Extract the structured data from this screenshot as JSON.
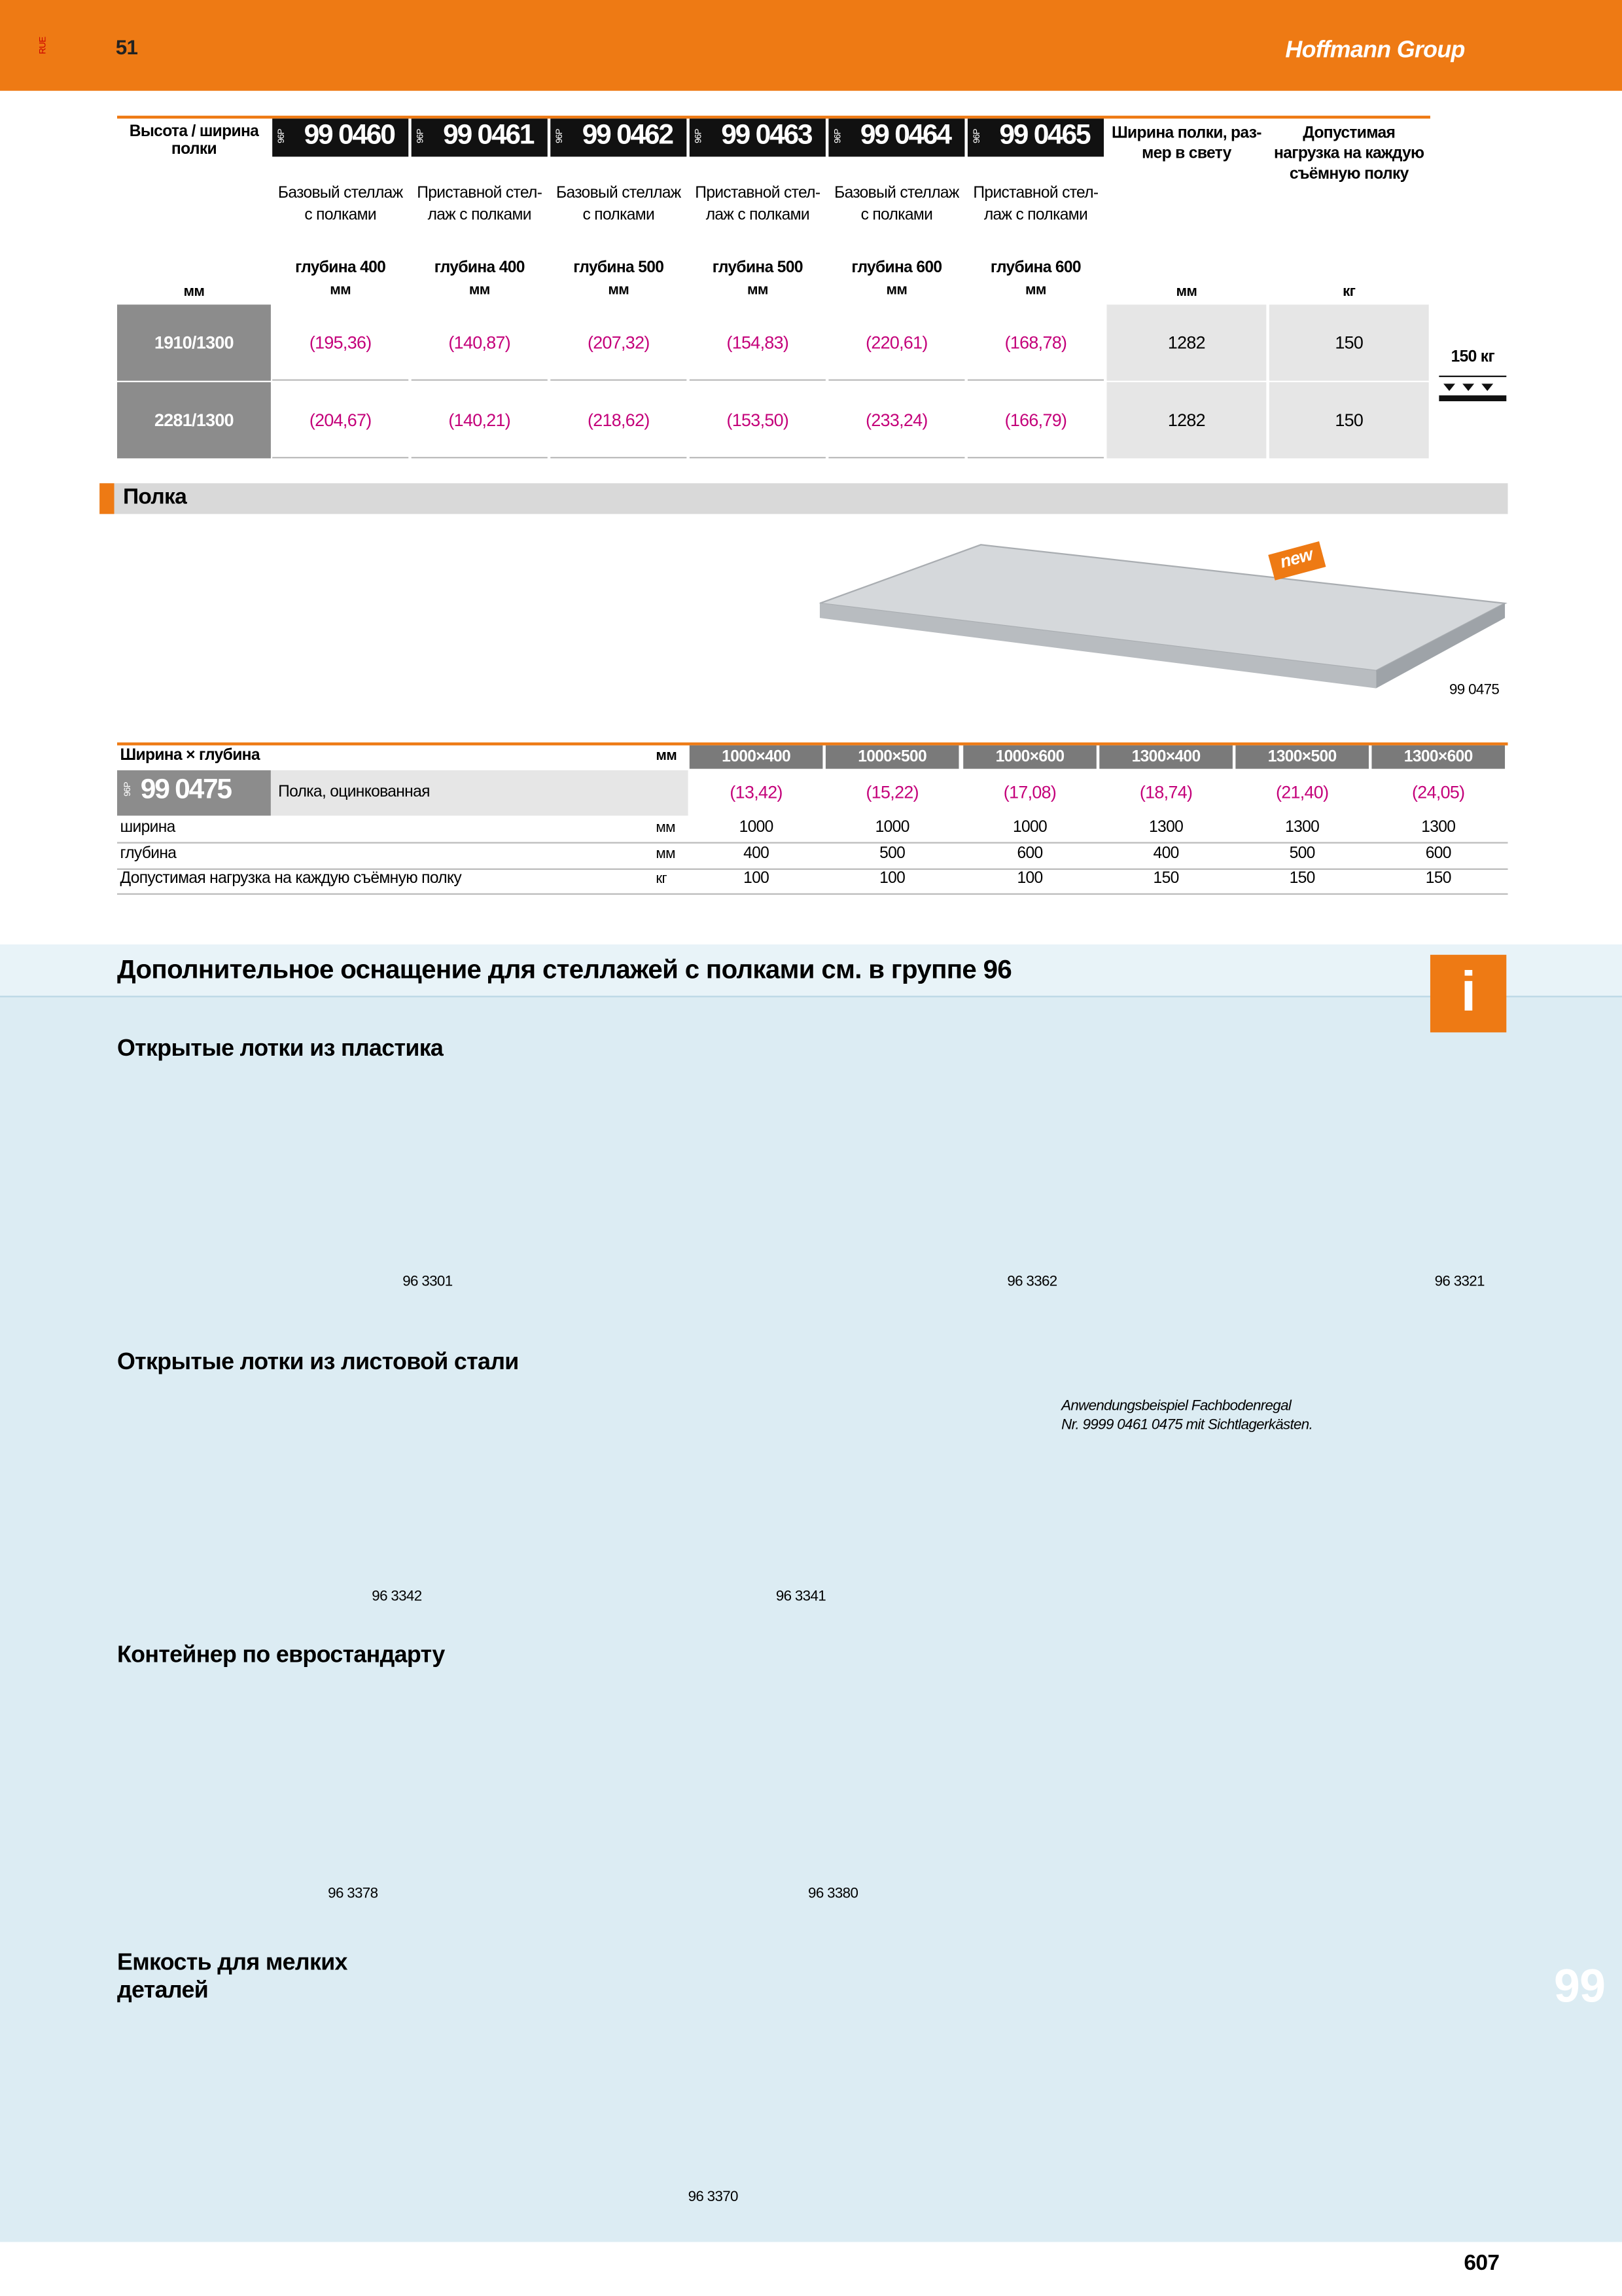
{
  "header": {
    "lang": "RUE",
    "section_page": "51",
    "brand": "Hoffmann Group"
  },
  "table1": {
    "label_header": "Высота / ширина полки",
    "label_unit": "мм",
    "products": [
      {
        "prefix": "96P",
        "code": "99 0460",
        "description": "Базовый стеллаж с полками",
        "depth": "глубина 400",
        "unit": "мм"
      },
      {
        "prefix": "96P",
        "code": "99 0461",
        "description": "Приставной стел- лаж с полками",
        "depth": "глубина 400",
        "unit": "мм"
      },
      {
        "prefix": "96P",
        "code": "99 0462",
        "description": "Базовый стеллаж с полками",
        "depth": "глубина 500",
        "unit": "мм"
      },
      {
        "prefix": "96P",
        "code": "99 0463",
        "description": "Приставной стел- лаж с полками",
        "depth": "глубина 500",
        "unit": "мм"
      },
      {
        "prefix": "96P",
        "code": "99 0464",
        "description": "Базовый стеллаж с полками",
        "depth": "глубина 600",
        "unit": "мм"
      },
      {
        "prefix": "96P",
        "code": "99 0465",
        "description": "Приставной стел- лаж с полками",
        "depth": "глубина 600",
        "unit": "мм"
      }
    ],
    "extra_columns": [
      {
        "header": "Ширина полки, раз- мер в свету",
        "unit": "мм"
      },
      {
        "header": "Допустимая нагрузка на каждую съёмную полку",
        "unit": "кг"
      }
    ],
    "rows": [
      {
        "label": "1910/1300",
        "prices": [
          "(195,36)",
          "(140,87)",
          "(207,32)",
          "(154,83)",
          "(220,61)",
          "(168,78)"
        ],
        "extra": [
          "1282",
          "150"
        ]
      },
      {
        "label": "2281/1300",
        "prices": [
          "(204,67)",
          "(140,21)",
          "(218,62)",
          "(153,50)",
          "(233,24)",
          "(166,79)"
        ],
        "extra": [
          "1282",
          "150"
        ]
      }
    ]
  },
  "load_badge": "150 кг",
  "shelf_section": {
    "title": "Полка",
    "badge": "new",
    "image_code": "99 0475"
  },
  "table2": {
    "size_header": "Ширина × глубина",
    "size_unit": "мм",
    "sizes": [
      "1000×400",
      "1000×500",
      "1000×600",
      "1300×400",
      "1300×500",
      "1300×600"
    ],
    "product": {
      "prefix": "96P",
      "code": "99 0475",
      "description": "Полка, оцинкованная",
      "prices": [
        "(13,42)",
        "(15,22)",
        "(17,08)",
        "(18,74)",
        "(21,40)",
        "(24,05)"
      ]
    },
    "rows": [
      {
        "label": "ширина",
        "unit": "мм",
        "values": [
          "1000",
          "1000",
          "1000",
          "1300",
          "1300",
          "1300"
        ]
      },
      {
        "label": "глубина",
        "unit": "мм",
        "values": [
          "400",
          "500",
          "600",
          "400",
          "500",
          "600"
        ]
      },
      {
        "label": "Допустимая нагрузка на каждую съёмную полку",
        "unit": "кг",
        "values": [
          "100",
          "100",
          "100",
          "150",
          "150",
          "150"
        ]
      }
    ]
  },
  "accessories": {
    "title": "Дополнительное оснащение для стеллажей с полками см. в группе 96",
    "info_icon": "i",
    "groups": [
      {
        "title": "Открытые лотки из пластика",
        "items": [
          {
            "code": "96 3301"
          },
          {
            "code": "96 3362"
          },
          {
            "code": "96 3321"
          }
        ]
      },
      {
        "title": "Открытые лотки из листовой стали",
        "items": [
          {
            "code": "96 3342"
          },
          {
            "code": "96 3341"
          }
        ]
      },
      {
        "title": "Контейнер по евростандарту",
        "items": [
          {
            "code": "96 3378"
          },
          {
            "code": "96 3380"
          }
        ]
      },
      {
        "title": "Емкость для мелких деталей",
        "items": [
          {
            "code": "96 3370"
          }
        ]
      }
    ],
    "example_caption": [
      "Anwendungsbeispiel Fachbodenregal",
      "Nr. 9999 0461 0475 mit Sichtlagerkästen."
    ]
  },
  "tab": "99",
  "page_number": "607"
}
